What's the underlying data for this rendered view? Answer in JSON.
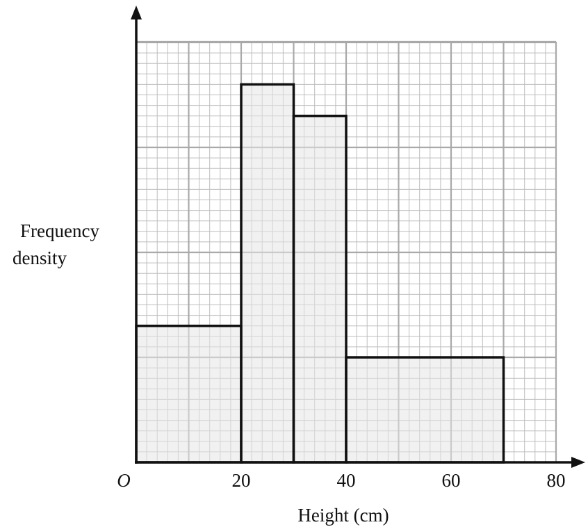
{
  "chart_data": {
    "type": "histogram",
    "title": "",
    "xlabel": "Height (cm)",
    "ylabel_lines": [
      "Frequency",
      "density"
    ],
    "origin_label": "O",
    "xlim": [
      0,
      80
    ],
    "x_ticks": [
      20,
      40,
      60,
      80
    ],
    "x_tick_labels": [
      "20",
      "40",
      "60",
      "80"
    ],
    "x_minor_step": 2,
    "x_major_step": 10,
    "y_grid": {
      "major_lines": 3.6,
      "minor_per_major": 10
    },
    "y_axis_numbered": false,
    "grid": true,
    "bars": [
      {
        "x_start": 0,
        "x_end": 20,
        "height_grid_units": 1.3
      },
      {
        "x_start": 20,
        "x_end": 30,
        "height_grid_units": 3.6
      },
      {
        "x_start": 30,
        "x_end": 40,
        "height_grid_units": 3.3
      },
      {
        "x_start": 40,
        "x_end": 70,
        "height_grid_units": 1.0
      }
    ]
  }
}
